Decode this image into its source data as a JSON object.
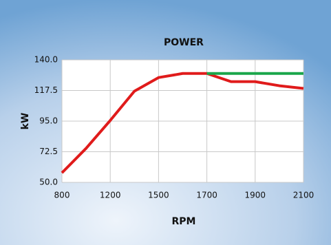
{
  "chart_data": {
    "type": "line",
    "title": "POWER",
    "x_label": "RPM",
    "y_label": "kW",
    "categories": [
      "800",
      null,
      "1200",
      null,
      "1500",
      null,
      "1700",
      null,
      "1900",
      null,
      "2100"
    ],
    "series": [
      {
        "color": "#e01b1b",
        "values": [
          57,
          75,
          95.5,
          117,
          127,
          130,
          130,
          124,
          124,
          121,
          119
        ]
      },
      {
        "color": "#1aa64a",
        "values": [
          null,
          null,
          null,
          null,
          null,
          null,
          130,
          130,
          130,
          130,
          130
        ]
      }
    ],
    "ylim": [
      50,
      140
    ],
    "yticks": [
      {
        "value": 50,
        "label": "50.0"
      },
      72.5,
      {
        "value": 95,
        "label": "95.0"
      },
      117.5,
      {
        "value": 140,
        "label": "140.0"
      }
    ],
    "grid": true
  }
}
